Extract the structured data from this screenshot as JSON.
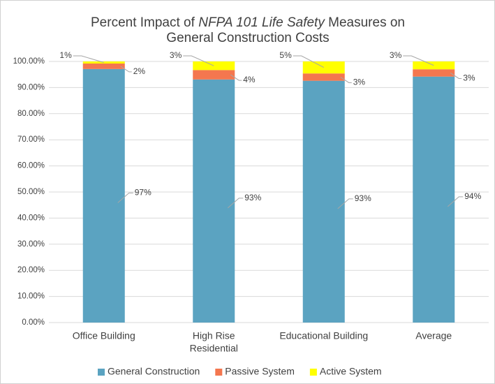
{
  "chart_data": {
    "type": "stacked_bar",
    "title": [
      [
        {
          "text": "Percent Impact of"
        },
        {
          "text": "NFPA 101 Life Safety",
          "italic": true
        },
        {
          "text": "Measures on"
        }
      ],
      [
        {
          "text": "General Construction Costs"
        }
      ]
    ],
    "categories": [
      "Office Building",
      [
        "High Rise",
        "Residential"
      ],
      "Educational Building",
      "Average"
    ],
    "series": [
      {
        "name": "General Construction",
        "color": "#5ba3c1",
        "values": [
          97.1,
          93.1,
          92.6,
          94.2
        ],
        "value_labels": [
          "97%",
          "93%",
          "93%",
          "94%"
        ]
      },
      {
        "name": "Passive System",
        "color": "#f4774f",
        "values": [
          2.1,
          3.6,
          2.8,
          2.8
        ],
        "value_labels": [
          "2%",
          "4%",
          "3%",
          "3%"
        ]
      },
      {
        "name": "Active System",
        "color": "#ffff00",
        "values": [
          0.8,
          3.3,
          4.6,
          3.0
        ],
        "value_labels": [
          "1%",
          "3%",
          "5%",
          "3%"
        ]
      }
    ],
    "ylim": [
      0,
      100
    ],
    "yticks": [
      {
        "value": 0,
        "label": "0.00%"
      },
      {
        "value": 10,
        "label": "10.00%"
      },
      {
        "value": 20,
        "label": "20.00%"
      },
      {
        "value": 30,
        "label": "30.00%"
      },
      {
        "value": 40,
        "label": "40.00%"
      },
      {
        "value": 50,
        "label": "50.00%"
      },
      {
        "value": 60,
        "label": "60.00%"
      },
      {
        "value": 70,
        "label": "70.00%"
      },
      {
        "value": 80,
        "label": "80.00%"
      },
      {
        "value": 90,
        "label": "90.00%"
      },
      {
        "value": 100,
        "label": "100.00%"
      }
    ],
    "grid": true,
    "legend": "bottom"
  }
}
